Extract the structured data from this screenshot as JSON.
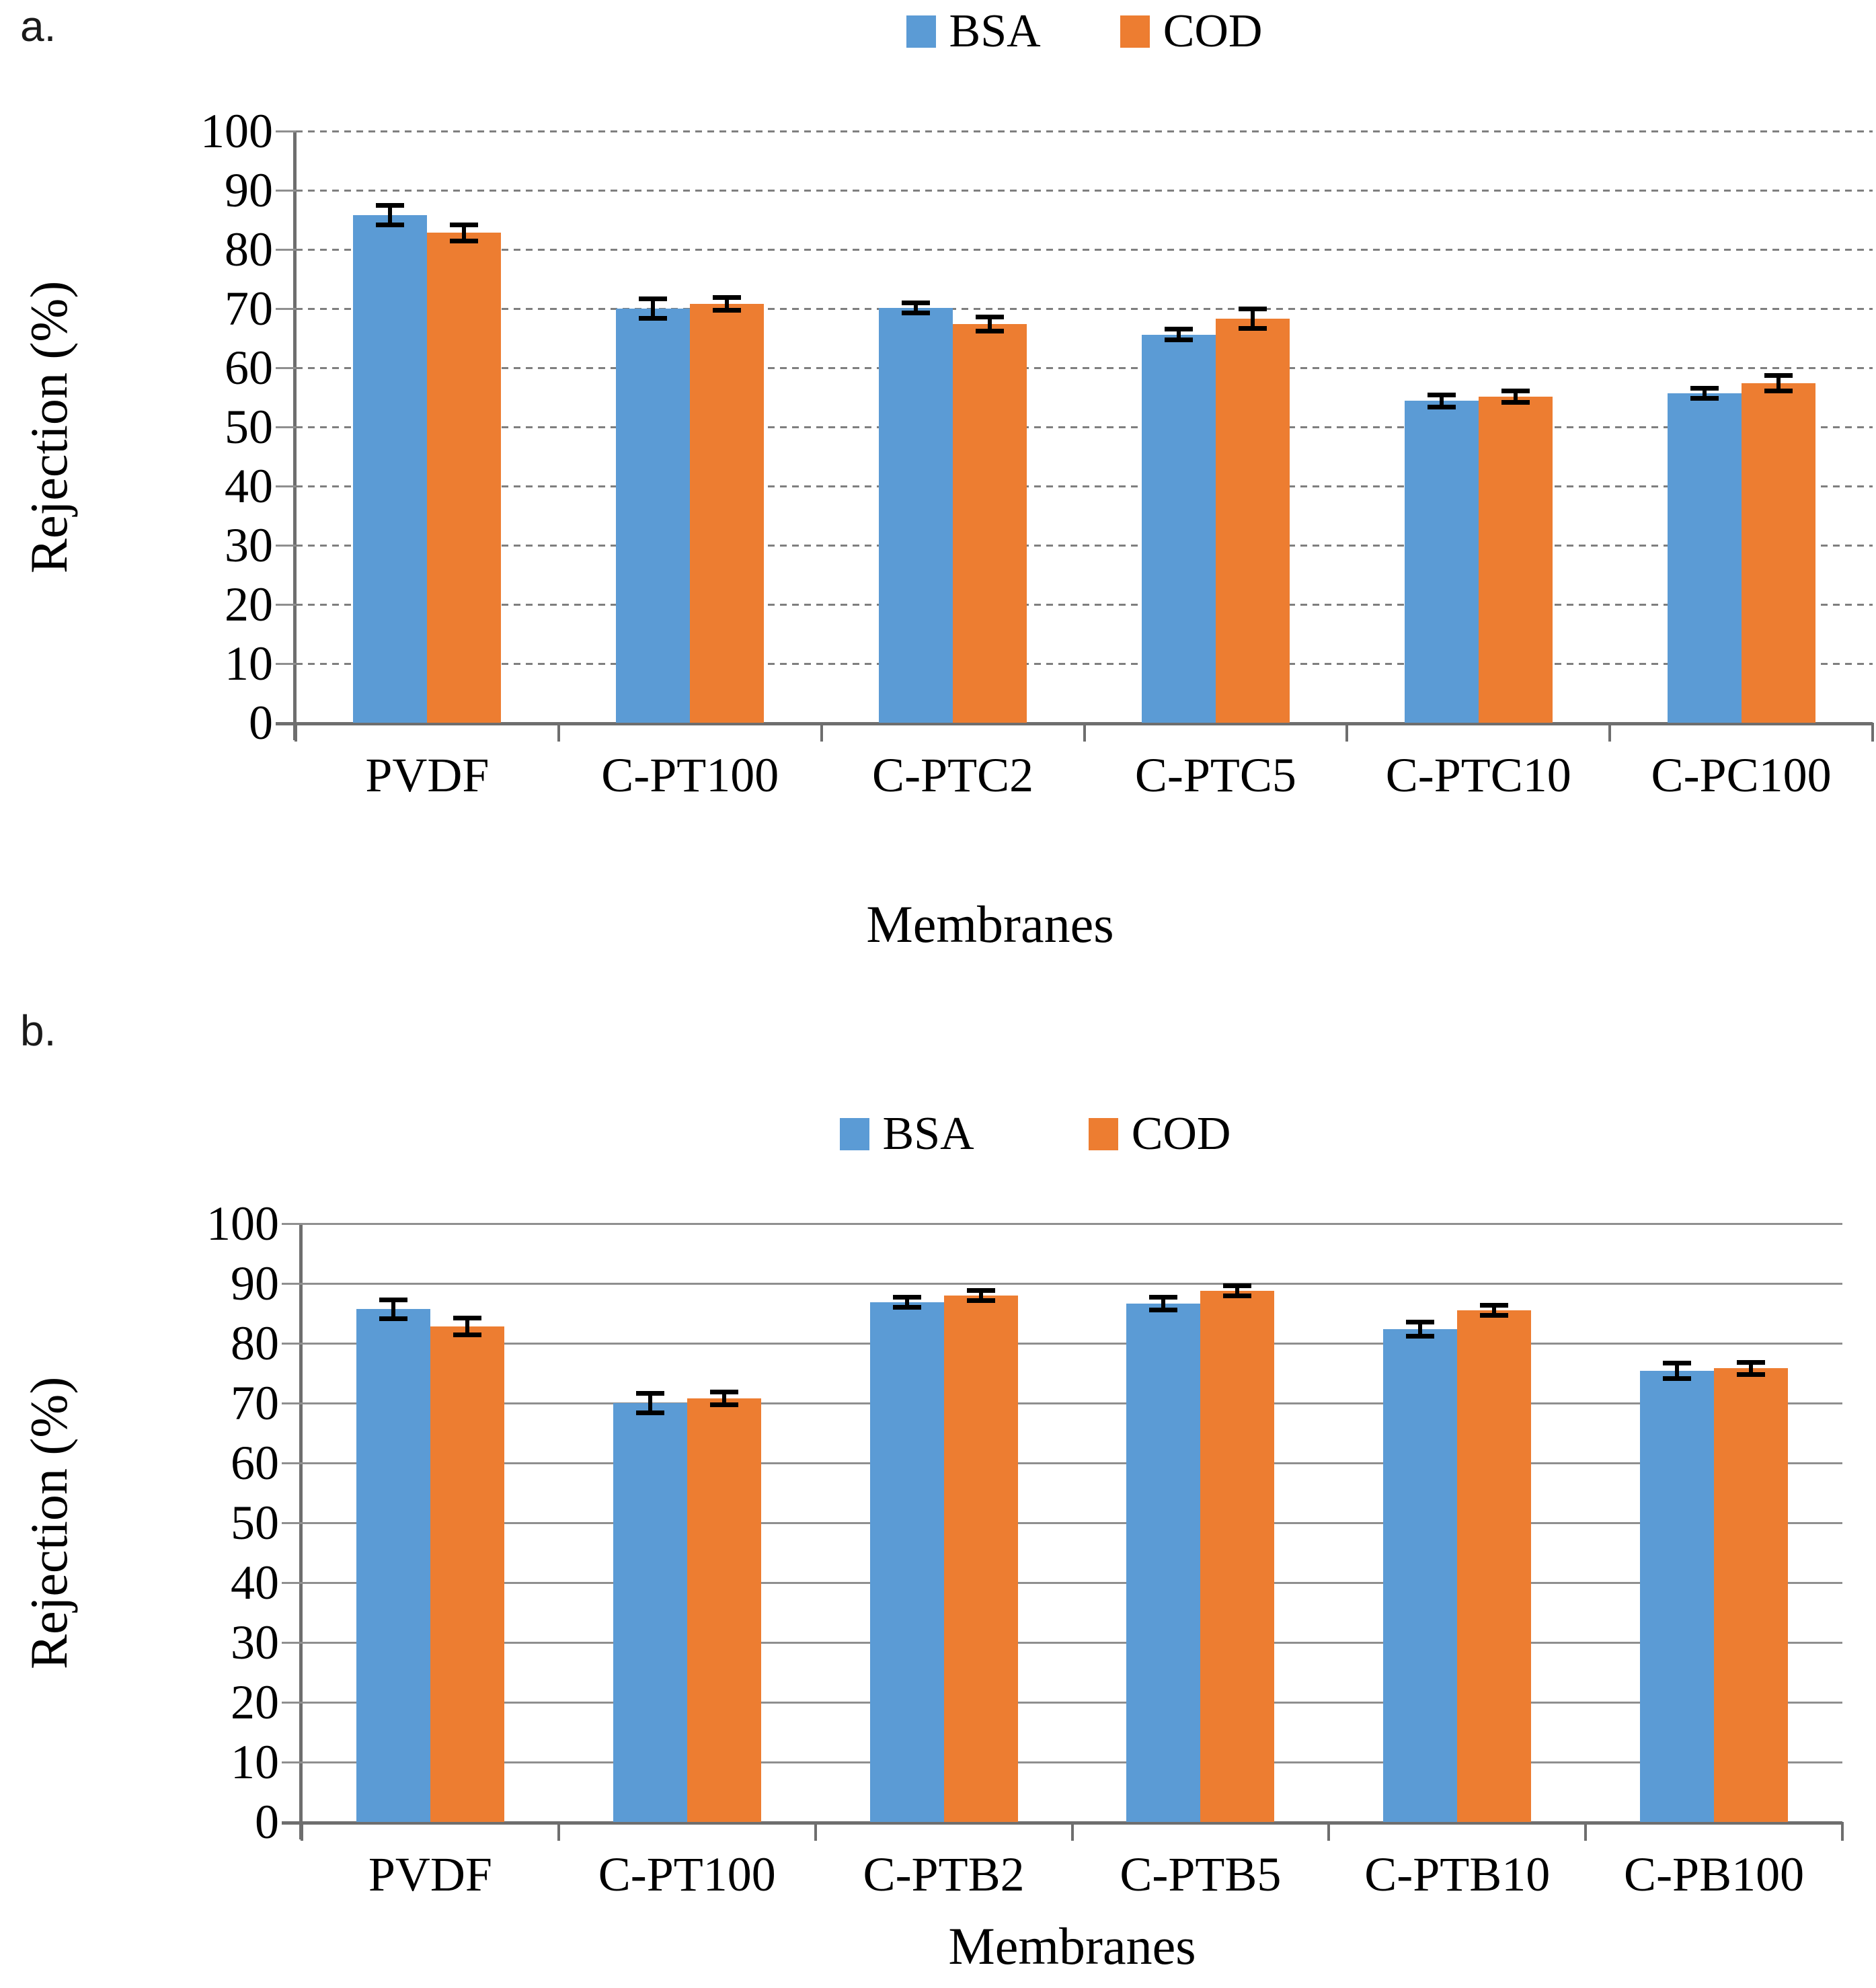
{
  "figure": {
    "panels": [
      {
        "label": "a."
      },
      {
        "label": "b."
      }
    ]
  },
  "legend": {
    "items": [
      {
        "label": "BSA",
        "color": "#5B9BD5"
      },
      {
        "label": "COD",
        "color": "#ED7D31"
      }
    ]
  },
  "colors": {
    "bsa": "#5B9BD5",
    "cod": "#ED7D31",
    "gridline": "#8f8f8f",
    "axis": "#6e6e6e",
    "error_bar": "#000000"
  },
  "chart_data": [
    {
      "type": "bar",
      "panel": "a",
      "categories": [
        "PVDF",
        "C-PT100",
        "C-PTC2",
        "C-PTC5",
        "C-PTC10",
        "C-PC100"
      ],
      "series": [
        {
          "name": "BSA",
          "color": "#5B9BD5",
          "values": [
            85.8,
            70.0,
            70.1,
            65.6,
            54.4,
            55.7
          ],
          "errors": [
            1.2,
            1.2,
            0.3,
            0.5,
            0.6,
            0.3
          ]
        },
        {
          "name": "COD",
          "color": "#ED7D31",
          "values": [
            82.8,
            70.8,
            67.4,
            68.3,
            55.1,
            57.4
          ],
          "errors": [
            1.0,
            0.7,
            0.8,
            1.2,
            0.6,
            0.9
          ]
        }
      ],
      "xlabel": "Membranes",
      "ylabel": "Rejection (%)",
      "ylim": [
        0,
        100
      ],
      "ytick_step": 10,
      "yticks": [
        100,
        90,
        80,
        70,
        60,
        50,
        40,
        30,
        20,
        10,
        0
      ],
      "grid": true,
      "grid_style": "dashed",
      "legend_position": "top-center",
      "error_bars": true
    },
    {
      "type": "bar",
      "panel": "b",
      "categories": [
        "PVDF",
        "C-PT100",
        "C-PTB2",
        "C-PTB5",
        "C-PTB10",
        "C-PB100"
      ],
      "series": [
        {
          "name": "BSA",
          "color": "#5B9BD5",
          "values": [
            85.7,
            70.0,
            86.9,
            86.6,
            82.4,
            75.4
          ],
          "errors": [
            1.2,
            1.2,
            0.3,
            0.7,
            0.8,
            0.9
          ]
        },
        {
          "name": "COD",
          "color": "#ED7D31",
          "values": [
            82.8,
            70.8,
            88.0,
            88.8,
            85.5,
            75.8
          ],
          "errors": [
            1.0,
            0.7,
            0.3,
            0.3,
            0.3,
            0.6
          ]
        }
      ],
      "xlabel": "Membranes",
      "ylabel": "Rejection (%)",
      "ylim": [
        0,
        100
      ],
      "ytick_step": 10,
      "yticks": [
        100,
        90,
        80,
        70,
        60,
        50,
        40,
        30,
        20,
        10,
        0
      ],
      "grid": true,
      "grid_style": "solid",
      "legend_position": "top-center",
      "error_bars": true
    }
  ]
}
